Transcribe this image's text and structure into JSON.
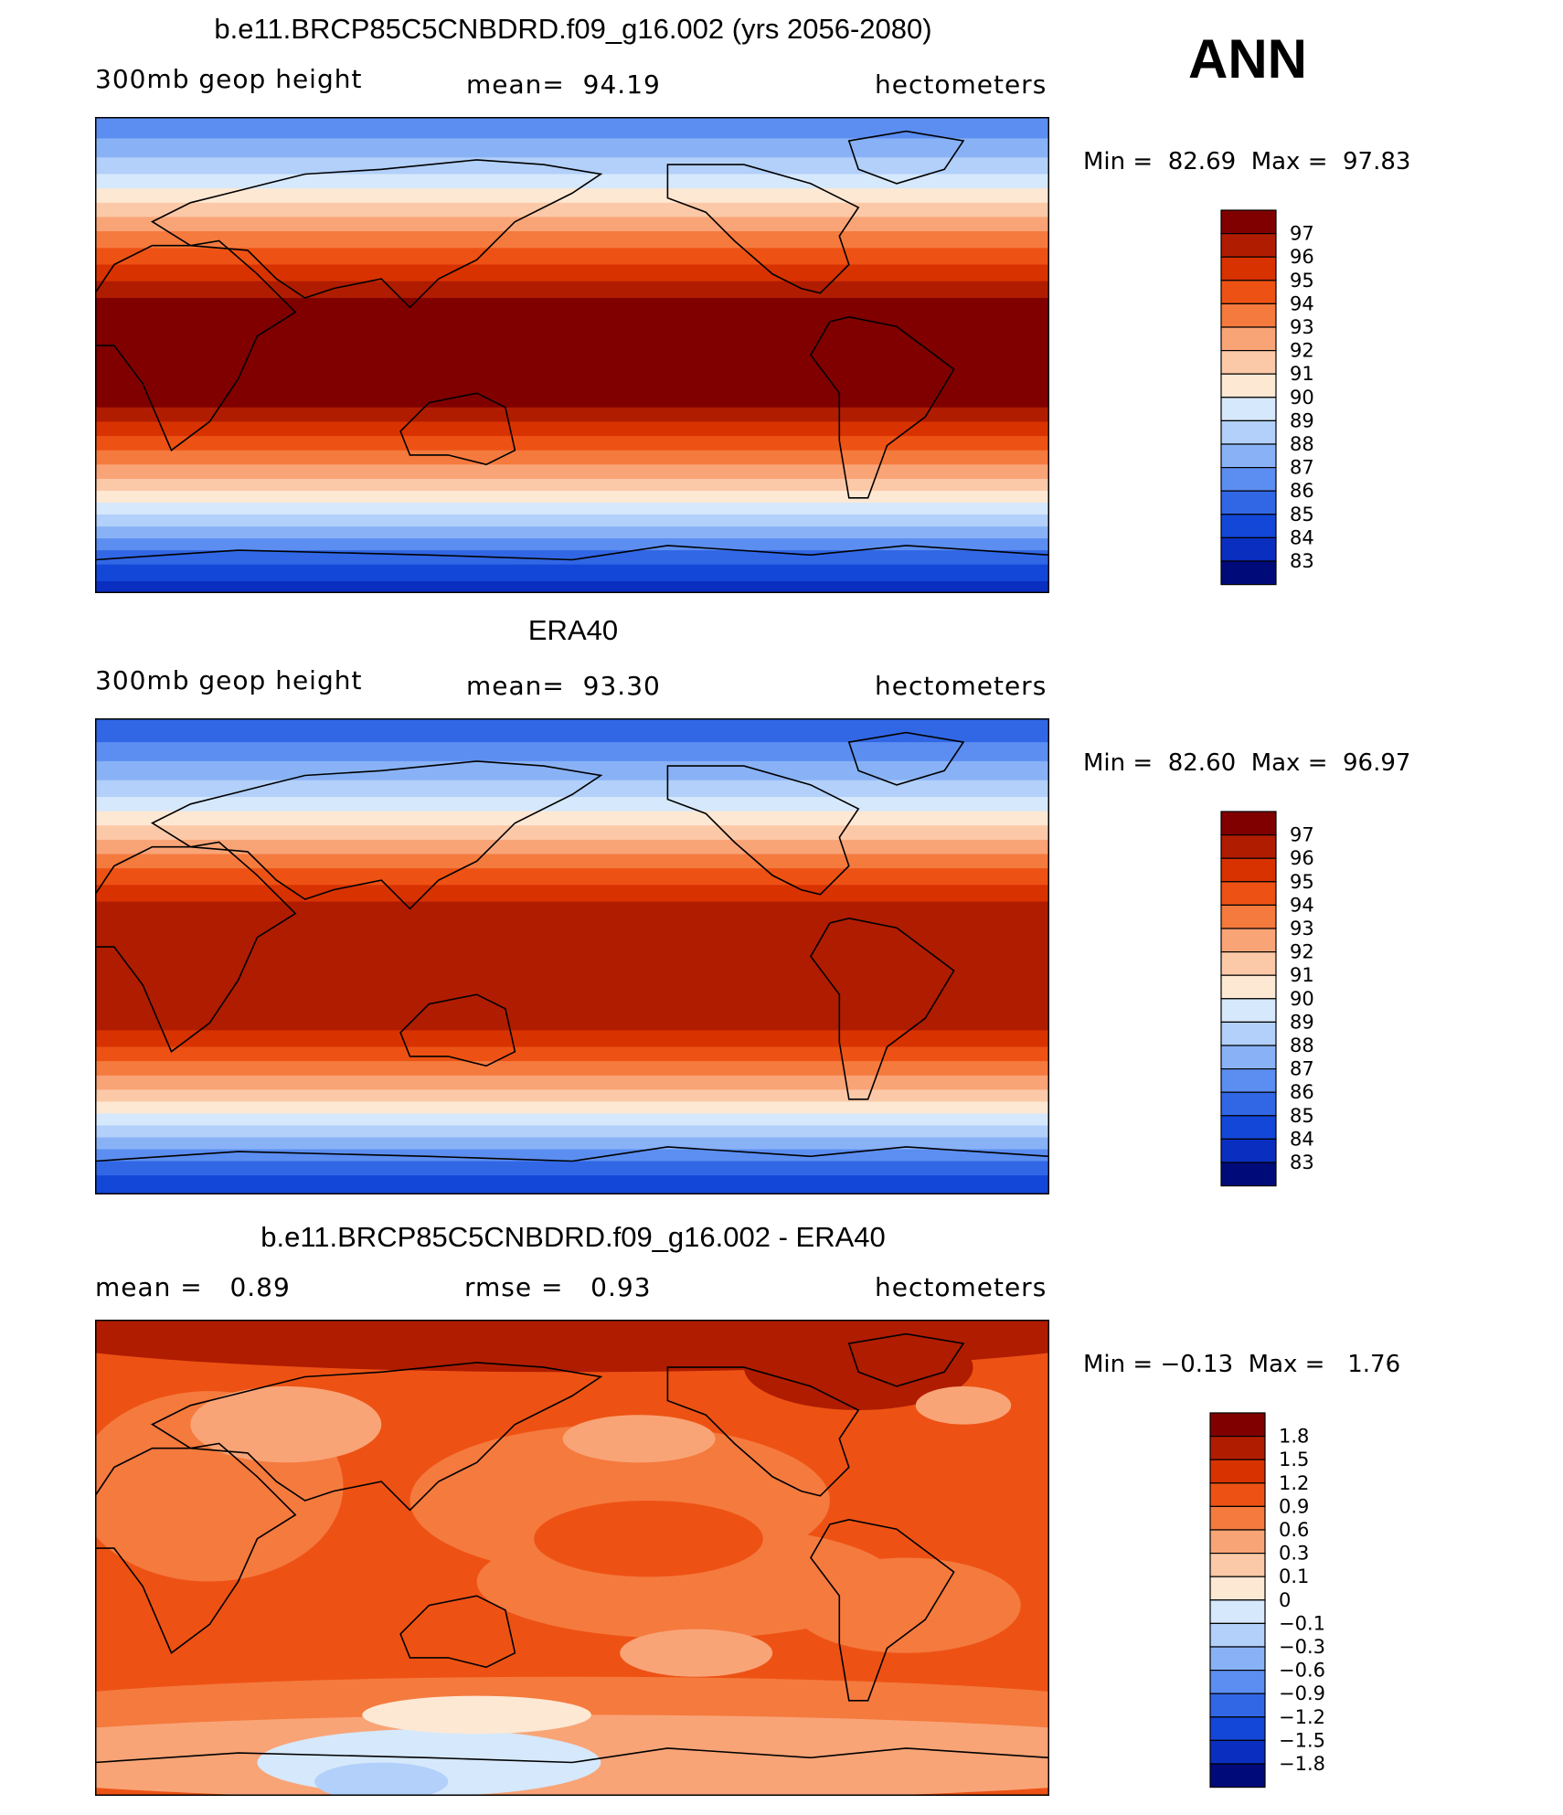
{
  "season": "ANN",
  "panels": [
    {
      "id": "model",
      "title": "b.e11.BRCP85C5CNBDRD.f09_g16.002 (yrs 2056-2080)",
      "left_label": "300mb geop height",
      "center_label": "mean=  94.19",
      "right_label": "hectometers",
      "min_label": "Min =  82.69",
      "max_label": "Max =  97.83",
      "levels": [
        "97",
        "96",
        "95",
        "94",
        "93",
        "92",
        "91",
        "90",
        "89",
        "88",
        "87",
        "86",
        "85",
        "84",
        "83"
      ]
    },
    {
      "id": "obs",
      "title": "ERA40",
      "left_label": "300mb geop height",
      "center_label": "mean=  93.30",
      "right_label": "hectometers",
      "min_label": "Min =  82.60",
      "max_label": "Max =  96.97",
      "levels": [
        "97",
        "96",
        "95",
        "94",
        "93",
        "92",
        "91",
        "90",
        "89",
        "88",
        "87",
        "86",
        "85",
        "84",
        "83"
      ]
    },
    {
      "id": "diff",
      "title": "b.e11.BRCP85C5CNBDRD.f09_g16.002 - ERA40",
      "left_label": "mean =   0.89",
      "center_label": "rmse =   0.93",
      "right_label": "hectometers",
      "min_label": "Min = −0.13",
      "max_label": "Max =   1.76",
      "levels": [
        "1.8",
        "1.5",
        "1.2",
        "0.9",
        "0.6",
        "0.3",
        "0.1",
        "0",
        "−0.1",
        "−0.3",
        "−0.6",
        "−0.9",
        "−1.2",
        "−1.5",
        "−1.8"
      ]
    }
  ],
  "colors": {
    "scale": [
      "#800000",
      "#b01c00",
      "#d83200",
      "#ed5214",
      "#f57a3e",
      "#f9a477",
      "#fcc9a8",
      "#fde8d4",
      "#d6e8fb",
      "#b2d0f9",
      "#89b2f6",
      "#5c8ef1",
      "#3167e5",
      "#1247d8",
      "#0a2fc0",
      "#03208f",
      "#000a78"
    ]
  }
}
